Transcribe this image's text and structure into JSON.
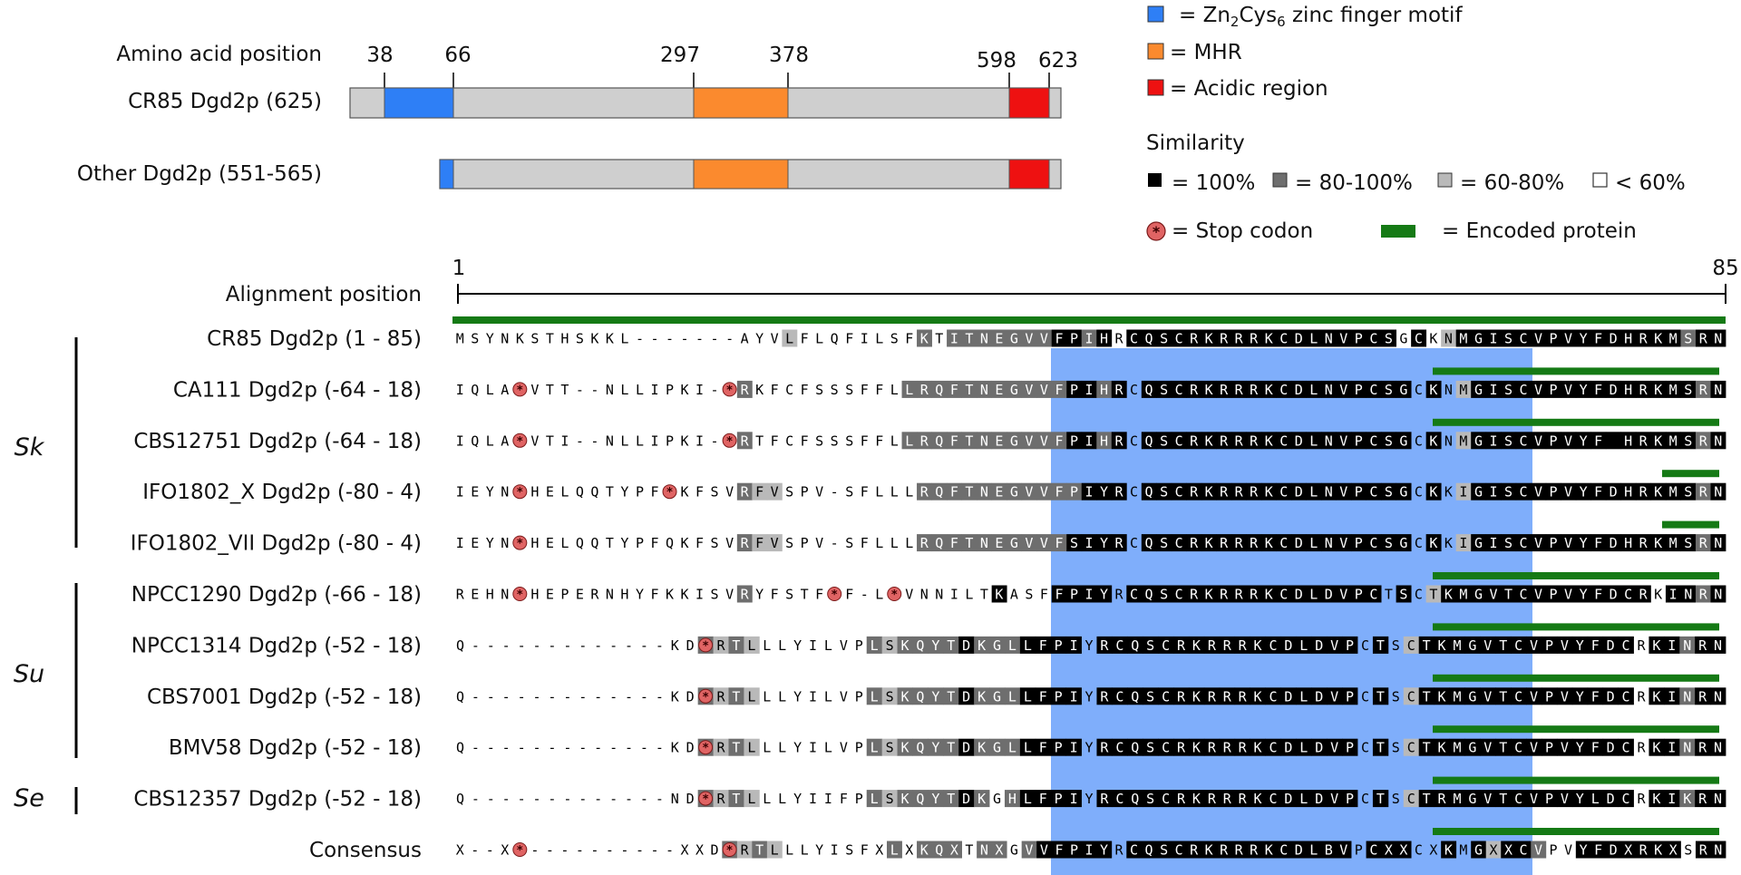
{
  "colors": {
    "zinc": "#2e7ff6",
    "mhr": "#fb8a2e",
    "acidic": "#ee1111",
    "protein_bar": "#cfcfcf",
    "highlight": "#7faefb",
    "encoded": "#157a15",
    "sim100": "#000000",
    "sim80": "#6e6e6e",
    "sim60": "#b9b9b9",
    "stop": "#e06464"
  },
  "domains": {
    "position_label": "Amino acid position",
    "positions": [
      "38",
      "66",
      "297",
      "378",
      "598",
      "623"
    ],
    "rows": [
      {
        "label": "CR85 Dgd2p (625)"
      },
      {
        "label": "Other Dgd2p (551-565)"
      }
    ]
  },
  "legend": {
    "zinc_label": "= Zn2Cys6 zinc finger motif",
    "mhr_label": "= MHR",
    "acidic_label": "= Acidic region",
    "similarity_title": "Similarity",
    "sim_100": "= 100%",
    "sim_80": "= 80-100%",
    "sim_60": "= 60-80%",
    "sim_lt60": "< 60%",
    "stop_label": "= Stop codon",
    "encoded_label": "= Encoded protein"
  },
  "alignment": {
    "axis_label": "Alignment position",
    "start": "1",
    "end": "85",
    "groups": [
      {
        "name": "Sk"
      },
      {
        "name": "Su"
      },
      {
        "name": "Se"
      }
    ],
    "rows": [
      {
        "label": "CR85 Dgd2p (1 - 85)",
        "sequence": "MSYNKSTHSKKL-------AYVLFLQFILSFKTITNEGVVFPIHRCQSCRKRRRKCDLNVPCSGCKNMGISCVPVYFDHRKMSRN",
        "shading": "......................s........g.gggggggbbgb.bbbbbbbbbbbbbbbbbb.bwsbbbbbbbbbbbbbbbgbb"
      },
      {
        "label": "CA111 Dgd2p (-64 - 18)",
        "sequence": "IQLA*VTT--NLLIPKI-*RKFCFSSSFFLLRQFTNEGVVFPIHRCQSCRKRRRKCDLNVPCSGCKNMGISCVPVYFDHRKMSRN",
        "shading": "...................g..........gggggggggggbbgb.bbbbbbbbbbbbbbbbbb.bwsbbbbbbbbbbbbbbbgbb"
      },
      {
        "label": "CBS12751 Dgd2p (-64 - 18)",
        "sequence": "IQLA*VTI--NLLIPKI-*RTFCFSSSFFLLRQFTNEGVVFPIHRCQSCRKRRRKCDLNVPCSGCKNMGISCVPVYF HRKMSRN",
        "shading": "...................g..........gggggggggggbbgb.bbbbbbbbbbbbbbbbbb.bwsbbbbbbbbbbbbbbbgbb"
      },
      {
        "label": "IFO1802_X Dgd2p (-80 - 4)",
        "sequence": "IEYN*HELQQTYPF*KFSVRFVSPV-SFLLLRQFTNEGVVFPIYRCQSCRKRRRKCDLNVPCSGCKKIGISCVPVYFDHRKMSRN",
        "shading": "...................gss.........gggggggggggbbb.bbbbbbbbbbbbbbbbbb.bwsbbbbbbbbbbbbbbbgbb"
      },
      {
        "label": "IFO1802_VII Dgd2p (-80 - 4)",
        "sequence": "IEYN*HELQQTYPFQKFSVRFVSPV-SFLLLRQFTNEGVVFSIYRCQSCRKRRRKCDLNVPCSGCKKIGISCVPVYFDHRKMSRN",
        "shading": "...................gss.........ggggggggggbbbb.bbbbbbbbbbbbbbbbbb.bwsbbbbbbbbbbbbbbbgbb"
      },
      {
        "label": "NPCC1290 Dgd2p (-66 - 18)",
        "sequence": "REHN*HEPERNHYFKKISVRYFSTF*F-L*VNNILTKASFFPIYRCQSCRKRRRKCDLDVPCTSCTKMGVTCVPVYFDCRKINRN",
        "shading": "...................g................b...bbbb.bbbbbbbbbbbbbbbbbwbwsbbbbbbbbbbbbbbwbbgbb"
      },
      {
        "label": "NPCC1314 Dgd2p (-52 - 18)",
        "sequence": "Q-------------KD*RTLLLYILVPLSKQYTDKGLLFPIYRCQSCRKRRRKCDLDVPCTSCTKMGVTCVPVYFDCRKINRN",
        "shading": "................gsgs.......gsggggbgggbbbb.bbbbbbbbbbbbbbbbbwbwsbbbbbbbbbbbbbbwbbgbb"
      },
      {
        "label": "CBS7001 Dgd2p (-52 - 18)",
        "sequence": "Q-------------KD*RTLLLYILVPLSKQYTDKGLLFPIYRCQSCRKRRRKCDLDVPCTSCTKMGVTCVPVYFDCRKINRN",
        "shading": "................gsgs.......gsggggbgggbbbb.bbbbbbbbbbbbbbbbbwbwsbbbbbbbbbbbbbbwbbgbb"
      },
      {
        "label": "BMV58 Dgd2p (-52 - 18)",
        "sequence": "Q-------------KD*RTLLLYILVPLSKQYTDKGLLFPIYRCQSCRKRRRKCDLDVPCTSCTKMGVTCVPVYFDCRKINRN",
        "shading": "................gsgs.......gsggggbgggbbbb.bbbbbbbbbbbbbbbbbwbwsbbbbbbbbbbbbbbwbbgbb"
      },
      {
        "label": "CBS12357 Dgd2p (-52 - 18)",
        "sequence": "Q-------------ND*RTLLLYIIFPLSKQYTDKGHLFPIYRCQSCRKRRRKCDLDVPCTSCTRMGVTCVPVYLDCRKIKRN",
        "shading": "................gsgs.......gsggggbg.gbbbb.bbbbbbbbbbbbbbbbbwbwsbbbbbbbbbbbbbb.bbgbb"
      },
      {
        "label": "Consensus",
        "sequence": "X--X*----------XXD*RTLLLYISFXLXKQXTNXGVVFPIYRCQSCRKRRRKCDLBVPCXXCXKMGXXCVPVYFDXRKXSRN",
        "shading": "..................gsgs.......g.ggg.gg.gbbbbb.bbbbbbbbbbbbbbbwbbb..b.bsbbg..bbbbbbb.bb.gbb"
      }
    ]
  }
}
